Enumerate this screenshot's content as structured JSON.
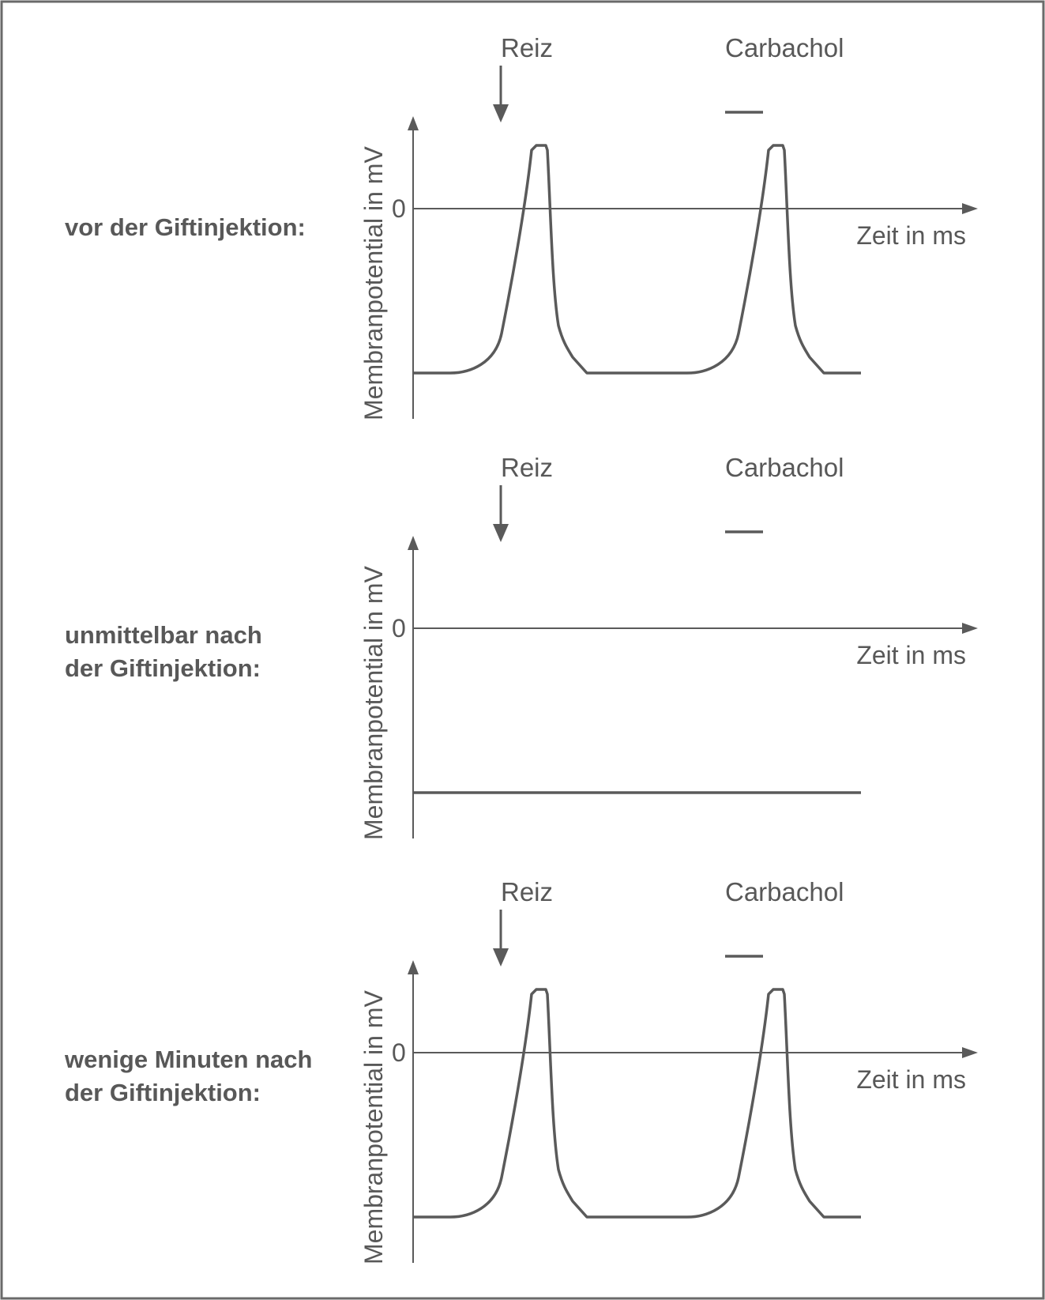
{
  "chart_data": [
    {
      "type": "line",
      "condition_label": [
        "vor der Giftinjektion:"
      ],
      "stimulus_label": "Reiz",
      "agent_label": "Carbachol",
      "xlabel": "Zeit in ms",
      "ylabel": "Membranpotential in mV",
      "y_tick_labels": [
        "0"
      ],
      "responses": [
        {
          "trigger": "Reiz",
          "action_potential": true
        },
        {
          "trigger": "Carbachol",
          "action_potential": true
        }
      ]
    },
    {
      "type": "line",
      "condition_label": [
        "unmittelbar nach",
        "der Giftinjektion:"
      ],
      "stimulus_label": "Reiz",
      "agent_label": "Carbachol",
      "xlabel": "Zeit in ms",
      "ylabel": "Membranpotential in mV",
      "y_tick_labels": [
        "0"
      ],
      "responses": [
        {
          "trigger": "Reiz",
          "action_potential": false
        },
        {
          "trigger": "Carbachol",
          "action_potential": false
        }
      ]
    },
    {
      "type": "line",
      "condition_label": [
        "wenige Minuten nach",
        "der Giftinjektion:"
      ],
      "stimulus_label": "Reiz",
      "agent_label": "Carbachol",
      "xlabel": "Zeit in ms",
      "ylabel": "Membranpotential in mV",
      "y_tick_labels": [
        "0"
      ],
      "responses": [
        {
          "trigger": "Reiz",
          "action_potential": true
        },
        {
          "trigger": "Carbachol",
          "action_potential": true
        }
      ]
    }
  ],
  "colors": {
    "frame": "#6a6a6a",
    "trace": "#5a5a5a",
    "axis": "#5a5a5a",
    "text": "#585858"
  }
}
